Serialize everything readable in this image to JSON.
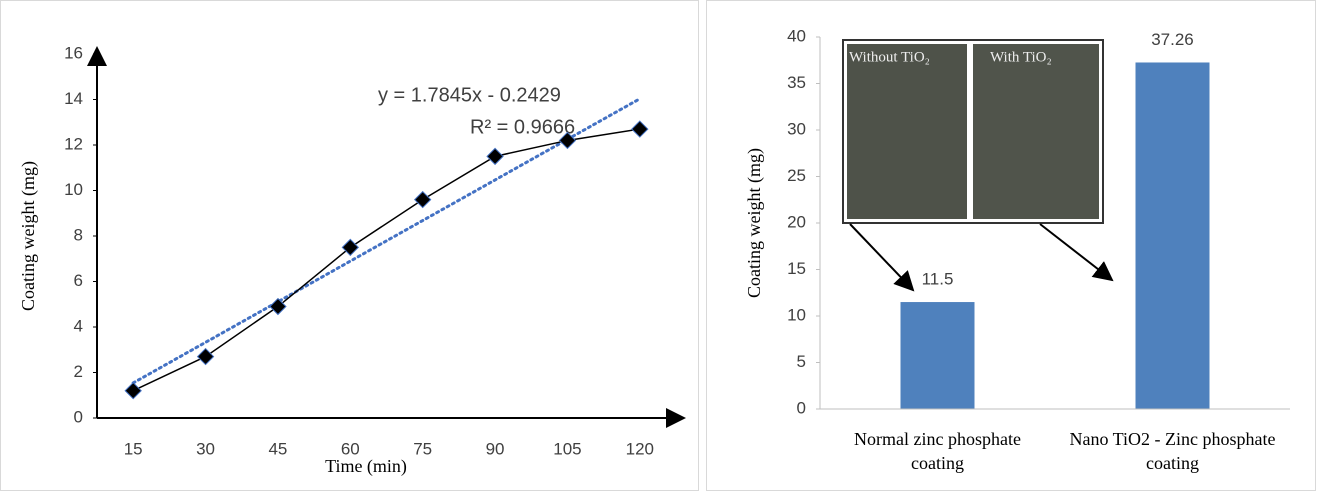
{
  "chart_data": [
    {
      "type": "line",
      "x_label": "Time (min)",
      "y_label": "Coating weight (mg)",
      "categories": [
        15,
        30,
        45,
        60,
        75,
        90,
        105,
        120
      ],
      "values": [
        1.2,
        2.7,
        4.9,
        7.5,
        9.6,
        11.5,
        12.2,
        12.7
      ],
      "color": "#000000",
      "marker_color": "#4472c4",
      "ylim": [
        0,
        16
      ],
      "yticks": [
        0,
        2,
        4,
        6,
        8,
        10,
        12,
        14,
        16
      ],
      "trendline": {
        "label": "y = 1.7845x - 0.2429",
        "r2_label": "R² = 0.9666",
        "slope": 1.7845,
        "intercept": -0.2429,
        "color": "#4472c4"
      }
    },
    {
      "type": "bar",
      "y_label": "Coating weight (mg)",
      "categories": [
        "Normal zinc phosphate coating",
        "Nano TiO2 - Zinc phosphate coating"
      ],
      "values": [
        11.5,
        37.26
      ],
      "color": "#4f81bd",
      "ylim": [
        0,
        40
      ],
      "yticks": [
        0,
        5,
        10,
        15,
        20,
        25,
        30,
        35,
        40
      ],
      "inset": {
        "left_label": "Without TiO₂",
        "right_label": "With TiO₂"
      }
    }
  ]
}
